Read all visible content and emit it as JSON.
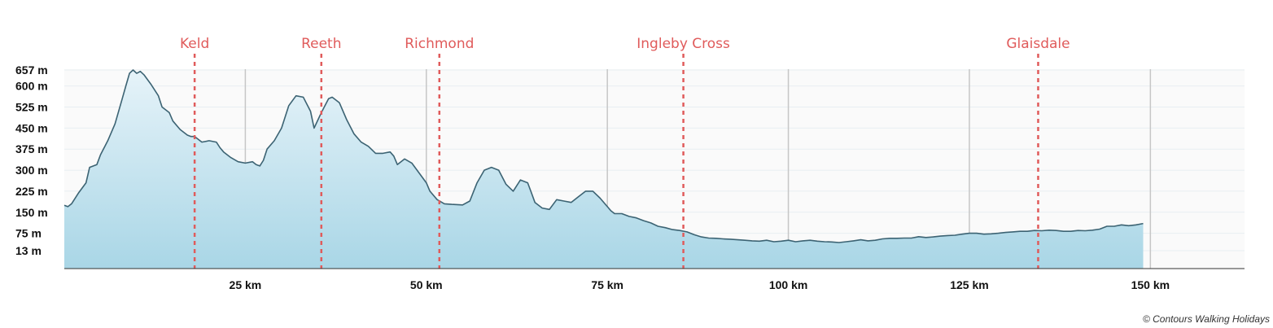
{
  "colors": {
    "plot_bg": "#fafafa",
    "grid_h": "#e8eef2",
    "grid_v": "#c6c6c6",
    "fill_top": "#e6f3f9",
    "fill_bottom": "#a9d6e6",
    "line": "#3c6373",
    "town": "#e05b5b",
    "axis": "#333333"
  },
  "credit": "© Contours Walking Holidays",
  "chart_data": {
    "type": "area",
    "title": "",
    "xlabel": "",
    "ylabel": "",
    "xlim": [
      0,
      163
    ],
    "ylim": [
      -50,
      657
    ],
    "grid": true,
    "y_ticks": [
      {
        "value": 657,
        "label": "657 m"
      },
      {
        "value": 600,
        "label": "600 m"
      },
      {
        "value": 525,
        "label": "525 m"
      },
      {
        "value": 450,
        "label": "450 m"
      },
      {
        "value": 375,
        "label": "375 m"
      },
      {
        "value": 300,
        "label": "300 m"
      },
      {
        "value": 225,
        "label": "225 m"
      },
      {
        "value": 150,
        "label": "150 m"
      },
      {
        "value": 75,
        "label": "75 m"
      },
      {
        "value": 13,
        "label": "13 m"
      }
    ],
    "x_ticks": [
      {
        "value": 25,
        "label": "25 km"
      },
      {
        "value": 50,
        "label": "50 km"
      },
      {
        "value": 75,
        "label": "75 km"
      },
      {
        "value": 100,
        "label": "100 km"
      },
      {
        "value": 125,
        "label": "125 km"
      },
      {
        "value": 150,
        "label": "150 km"
      }
    ],
    "towns": [
      {
        "name": "Keld",
        "km": 18
      },
      {
        "name": "Reeth",
        "km": 35.5
      },
      {
        "name": "Richmond",
        "km": 51.8
      },
      {
        "name": "Ingleby Cross",
        "km": 85.5
      },
      {
        "name": "Glaisdale",
        "km": 134.5
      }
    ],
    "series": [
      {
        "points": [
          [
            0,
            175
          ],
          [
            0.5,
            170
          ],
          [
            1,
            180
          ],
          [
            2,
            220
          ],
          [
            3,
            255
          ],
          [
            3.5,
            310
          ],
          [
            4.5,
            320
          ],
          [
            5,
            355
          ],
          [
            6,
            405
          ],
          [
            7,
            465
          ],
          [
            8,
            555
          ],
          [
            8.5,
            600
          ],
          [
            9,
            645
          ],
          [
            9.5,
            657
          ],
          [
            10,
            645
          ],
          [
            10.5,
            652
          ],
          [
            11,
            640
          ],
          [
            12,
            605
          ],
          [
            13,
            565
          ],
          [
            13.5,
            525
          ],
          [
            14.5,
            505
          ],
          [
            15,
            475
          ],
          [
            16,
            445
          ],
          [
            17,
            425
          ],
          [
            17.5,
            420
          ],
          [
            18,
            420
          ],
          [
            19,
            400
          ],
          [
            20,
            405
          ],
          [
            21,
            400
          ],
          [
            21.5,
            380
          ],
          [
            22,
            365
          ],
          [
            23,
            345
          ],
          [
            24,
            330
          ],
          [
            25,
            325
          ],
          [
            26,
            330
          ],
          [
            26.5,
            320
          ],
          [
            27,
            315
          ],
          [
            27.5,
            335
          ],
          [
            28,
            375
          ],
          [
            29,
            405
          ],
          [
            30,
            450
          ],
          [
            31,
            530
          ],
          [
            32,
            565
          ],
          [
            33,
            560
          ],
          [
            34,
            510
          ],
          [
            34.5,
            450
          ],
          [
            35.5,
            505
          ],
          [
            36.5,
            555
          ],
          [
            37,
            560
          ],
          [
            38,
            540
          ],
          [
            39,
            480
          ],
          [
            40,
            430
          ],
          [
            41,
            400
          ],
          [
            42,
            385
          ],
          [
            43,
            360
          ],
          [
            44,
            360
          ],
          [
            45,
            365
          ],
          [
            45.5,
            350
          ],
          [
            46,
            320
          ],
          [
            47,
            340
          ],
          [
            48,
            325
          ],
          [
            49,
            290
          ],
          [
            50,
            255
          ],
          [
            50.5,
            225
          ],
          [
            51.5,
            195
          ],
          [
            52.5,
            180
          ],
          [
            53.5,
            178
          ],
          [
            55,
            176
          ],
          [
            56,
            190
          ],
          [
            57,
            255
          ],
          [
            58,
            300
          ],
          [
            59,
            310
          ],
          [
            60,
            300
          ],
          [
            61,
            250
          ],
          [
            62,
            225
          ],
          [
            63,
            265
          ],
          [
            64,
            255
          ],
          [
            64.5,
            220
          ],
          [
            65,
            185
          ],
          [
            66,
            165
          ],
          [
            67,
            160
          ],
          [
            68,
            195
          ],
          [
            69,
            190
          ],
          [
            70,
            185
          ],
          [
            71,
            205
          ],
          [
            72,
            225
          ],
          [
            73,
            225
          ],
          [
            74,
            200
          ],
          [
            75,
            170
          ],
          [
            75.5,
            155
          ],
          [
            76,
            145
          ],
          [
            77,
            145
          ],
          [
            78,
            135
          ],
          [
            79,
            130
          ],
          [
            80,
            120
          ],
          [
            81,
            112
          ],
          [
            82,
            100
          ],
          [
            83,
            95
          ],
          [
            84,
            88
          ],
          [
            85,
            85
          ],
          [
            86,
            80
          ],
          [
            87,
            70
          ],
          [
            88,
            62
          ],
          [
            89,
            58
          ],
          [
            90,
            57
          ],
          [
            91,
            55
          ],
          [
            92,
            54
          ],
          [
            93,
            52
          ],
          [
            94,
            50
          ],
          [
            95,
            48
          ],
          [
            96,
            47
          ],
          [
            97,
            50
          ],
          [
            98,
            45
          ],
          [
            99,
            47
          ],
          [
            100,
            50
          ],
          [
            101,
            45
          ],
          [
            102,
            48
          ],
          [
            103,
            50
          ],
          [
            104,
            47
          ],
          [
            105,
            45
          ],
          [
            106,
            44
          ],
          [
            107,
            42
          ],
          [
            108,
            45
          ],
          [
            109,
            48
          ],
          [
            110,
            52
          ],
          [
            111,
            48
          ],
          [
            112,
            50
          ],
          [
            113,
            55
          ],
          [
            114,
            57
          ],
          [
            115,
            57
          ],
          [
            116,
            58
          ],
          [
            117,
            58
          ],
          [
            118,
            63
          ],
          [
            119,
            60
          ],
          [
            120,
            62
          ],
          [
            121,
            65
          ],
          [
            122,
            67
          ],
          [
            123,
            68
          ],
          [
            124,
            72
          ],
          [
            125,
            75
          ],
          [
            126,
            75
          ],
          [
            127,
            72
          ],
          [
            128,
            73
          ],
          [
            129,
            75
          ],
          [
            130,
            78
          ],
          [
            131,
            80
          ],
          [
            132,
            82
          ],
          [
            133,
            82
          ],
          [
            134,
            85
          ],
          [
            135,
            84
          ],
          [
            136,
            86
          ],
          [
            137,
            85
          ],
          [
            138,
            82
          ],
          [
            139,
            82
          ],
          [
            140,
            85
          ],
          [
            141,
            84
          ],
          [
            142,
            86
          ],
          [
            143,
            90
          ],
          [
            144,
            100
          ],
          [
            145,
            100
          ],
          [
            146,
            105
          ],
          [
            147,
            102
          ],
          [
            148,
            105
          ],
          [
            149,
            110
          ]
        ]
      }
    ]
  }
}
